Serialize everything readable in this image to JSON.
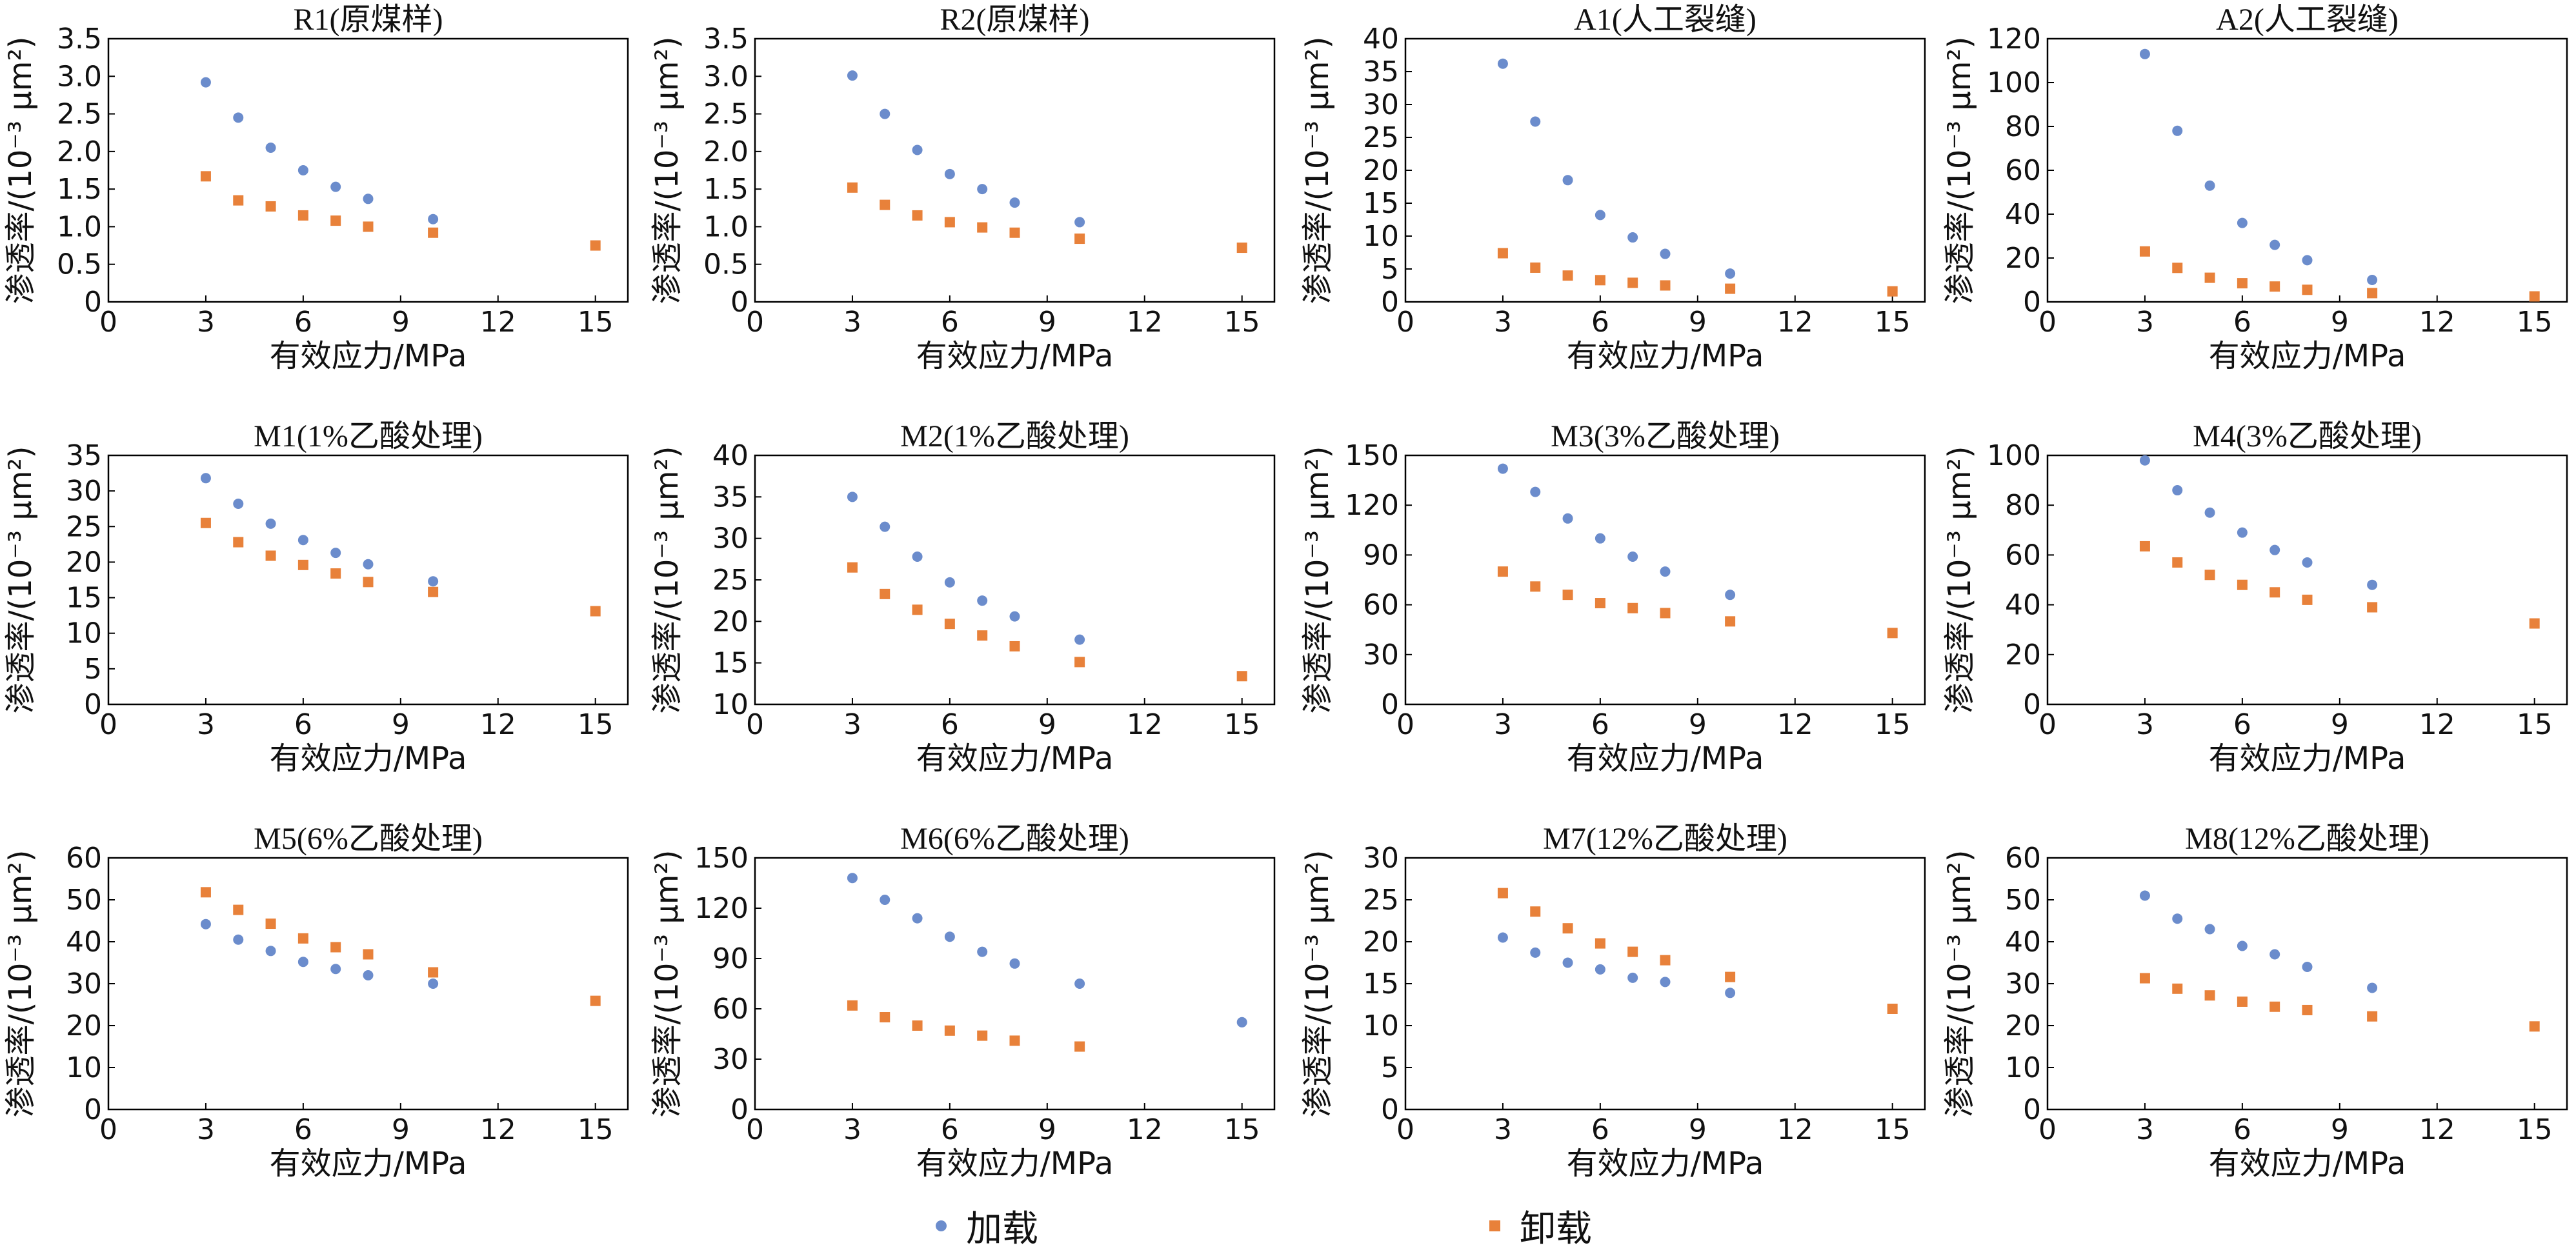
{
  "legend": {
    "load_label": "加载",
    "unload_label": "卸载"
  },
  "colors": {
    "load": "#6b8ccc",
    "unload": "#e8813a",
    "axis": "#000000"
  },
  "chart_data": [
    {
      "type": "scatter",
      "title": "R1(原煤样)",
      "xlabel": "有效应力/MPa",
      "ylabel": "渗透率/(10⁻³ μm²)",
      "xlim": [
        0,
        16
      ],
      "xticks": [
        0,
        3,
        6,
        9,
        12,
        15
      ],
      "ylim": [
        0,
        3.5
      ],
      "yticks": [
        "0",
        "0.5",
        "1.0",
        "1.5",
        "2.0",
        "2.5",
        "3.0",
        "3.5"
      ],
      "series": [
        {
          "name": "加载",
          "x": [
            3,
            4,
            5,
            6,
            7,
            8,
            10
          ],
          "y": [
            2.92,
            2.45,
            2.05,
            1.75,
            1.53,
            1.37,
            1.1
          ]
        },
        {
          "name": "卸载",
          "x": [
            3,
            4,
            5,
            6,
            7,
            8,
            10,
            15
          ],
          "y": [
            1.67,
            1.35,
            1.27,
            1.15,
            1.08,
            1.0,
            0.92,
            0.75
          ]
        }
      ]
    },
    {
      "type": "scatter",
      "title": "R2(原煤样)",
      "xlabel": "有效应力/MPa",
      "ylabel": "渗透率/(10⁻³ μm²)",
      "xlim": [
        0,
        16
      ],
      "xticks": [
        0,
        3,
        6,
        9,
        12,
        15
      ],
      "ylim": [
        0,
        3.5
      ],
      "yticks": [
        "0",
        "0.5",
        "1.0",
        "1.5",
        "2.0",
        "2.5",
        "3.0",
        "3.5"
      ],
      "series": [
        {
          "name": "加载",
          "x": [
            3,
            4,
            5,
            6,
            7,
            8,
            10
          ],
          "y": [
            3.01,
            2.5,
            2.02,
            1.7,
            1.5,
            1.32,
            1.06
          ]
        },
        {
          "name": "卸载",
          "x": [
            3,
            4,
            5,
            6,
            7,
            8,
            10,
            15
          ],
          "y": [
            1.52,
            1.29,
            1.15,
            1.06,
            0.99,
            0.92,
            0.84,
            0.72
          ]
        }
      ]
    },
    {
      "type": "scatter",
      "title": "A1(人工裂缝)",
      "xlabel": "有效应力/MPa",
      "ylabel": "渗透率/(10⁻³ μm²)",
      "xlim": [
        0,
        16
      ],
      "xticks": [
        0,
        3,
        6,
        9,
        12,
        15
      ],
      "ylim": [
        0,
        40
      ],
      "yticks": [
        "0",
        "5",
        "10",
        "15",
        "20",
        "25",
        "30",
        "35",
        "40"
      ],
      "series": [
        {
          "name": "加载",
          "x": [
            3,
            4,
            5,
            6,
            7,
            8,
            10
          ],
          "y": [
            36.2,
            27.4,
            18.5,
            13.2,
            9.8,
            7.3,
            4.3
          ]
        },
        {
          "name": "卸载",
          "x": [
            3,
            4,
            5,
            6,
            7,
            8,
            10,
            15
          ],
          "y": [
            7.4,
            5.2,
            4.0,
            3.3,
            2.9,
            2.5,
            2.0,
            1.6
          ]
        }
      ]
    },
    {
      "type": "scatter",
      "title": "A2(人工裂缝)",
      "xlabel": "有效应力/MPa",
      "ylabel": "渗透率/(10⁻³ μm²)",
      "xlim": [
        0,
        16
      ],
      "xticks": [
        0,
        3,
        6,
        9,
        12,
        15
      ],
      "ylim": [
        0,
        120
      ],
      "yticks": [
        "0",
        "20",
        "40",
        "60",
        "80",
        "100",
        "120"
      ],
      "series": [
        {
          "name": "加载",
          "x": [
            3,
            4,
            5,
            6,
            7,
            8,
            10
          ],
          "y": [
            113,
            78,
            53,
            36,
            26,
            19,
            10
          ]
        },
        {
          "name": "卸载",
          "x": [
            3,
            4,
            5,
            6,
            7,
            8,
            10,
            15
          ],
          "y": [
            23,
            15.5,
            11,
            8.5,
            7,
            5.5,
            4,
            2.5
          ]
        }
      ]
    },
    {
      "type": "scatter",
      "title": "M1(1%乙酸处理)",
      "xlabel": "有效应力/MPa",
      "ylabel": "渗透率/(10⁻³ μm²)",
      "xlim": [
        0,
        16
      ],
      "xticks": [
        0,
        3,
        6,
        9,
        12,
        15
      ],
      "ylim": [
        0,
        35
      ],
      "yticks": [
        "0",
        "5",
        "10",
        "15",
        "20",
        "25",
        "30",
        "35"
      ],
      "series": [
        {
          "name": "加载",
          "x": [
            3,
            4,
            5,
            6,
            7,
            8,
            10
          ],
          "y": [
            31.8,
            28.2,
            25.4,
            23.1,
            21.3,
            19.7,
            17.3
          ]
        },
        {
          "name": "卸载",
          "x": [
            3,
            4,
            5,
            6,
            7,
            8,
            10,
            15
          ],
          "y": [
            25.5,
            22.8,
            20.9,
            19.6,
            18.4,
            17.2,
            15.8,
            13.1
          ]
        }
      ]
    },
    {
      "type": "scatter",
      "title": "M2(1%乙酸处理)",
      "xlabel": "有效应力/MPa",
      "ylabel": "渗透率/(10⁻³ μm²)",
      "xlim": [
        0,
        16
      ],
      "xticks": [
        0,
        3,
        6,
        9,
        12,
        15
      ],
      "ylim": [
        10,
        40
      ],
      "yticks": [
        "10",
        "15",
        "20",
        "25",
        "30",
        "35",
        "40"
      ],
      "series": [
        {
          "name": "加载",
          "x": [
            3,
            4,
            5,
            6,
            7,
            8,
            10
          ],
          "y": [
            35.0,
            31.4,
            27.8,
            24.7,
            22.5,
            20.6,
            17.8
          ]
        },
        {
          "name": "卸载",
          "x": [
            3,
            4,
            5,
            6,
            7,
            8,
            10,
            15
          ],
          "y": [
            26.5,
            23.3,
            21.4,
            19.7,
            18.3,
            17.0,
            15.1,
            13.4
          ]
        }
      ]
    },
    {
      "type": "scatter",
      "title": "M3(3%乙酸处理)",
      "xlabel": "有效应力/MPa",
      "ylabel": "渗透率/(10⁻³ μm²)",
      "xlim": [
        0,
        16
      ],
      "xticks": [
        0,
        3,
        6,
        9,
        12,
        15
      ],
      "ylim": [
        0,
        150
      ],
      "yticks": [
        "0",
        "30",
        "60",
        "90",
        "120",
        "150"
      ],
      "series": [
        {
          "name": "加载",
          "x": [
            3,
            4,
            5,
            6,
            7,
            8,
            10
          ],
          "y": [
            142,
            128,
            112,
            100,
            89,
            80,
            66
          ]
        },
        {
          "name": "卸载",
          "x": [
            3,
            4,
            5,
            6,
            7,
            8,
            10,
            15
          ],
          "y": [
            80,
            71,
            66,
            61,
            58,
            55,
            50,
            43
          ]
        }
      ]
    },
    {
      "type": "scatter",
      "title": "M4(3%乙酸处理)",
      "xlabel": "有效应力/MPa",
      "ylabel": "渗透率/(10⁻³ μm²)",
      "xlim": [
        0,
        16
      ],
      "xticks": [
        0,
        3,
        6,
        9,
        12,
        15
      ],
      "ylim": [
        0,
        100
      ],
      "yticks": [
        "0",
        "20",
        "40",
        "60",
        "80",
        "100"
      ],
      "series": [
        {
          "name": "加载",
          "x": [
            3,
            4,
            5,
            6,
            7,
            8,
            10
          ],
          "y": [
            98,
            86,
            77,
            69,
            62,
            57,
            48
          ]
        },
        {
          "name": "卸载",
          "x": [
            3,
            4,
            5,
            6,
            7,
            8,
            10,
            15
          ],
          "y": [
            63.5,
            57,
            52,
            48,
            45,
            42,
            39,
            32.5
          ]
        }
      ]
    },
    {
      "type": "scatter",
      "title": "M5(6%乙酸处理)",
      "xlabel": "有效应力/MPa",
      "ylabel": "渗透率/(10⁻³ μm²)",
      "xlim": [
        0,
        16
      ],
      "xticks": [
        0,
        3,
        6,
        9,
        12,
        15
      ],
      "ylim": [
        0,
        60
      ],
      "yticks": [
        "0",
        "10",
        "20",
        "30",
        "40",
        "50",
        "60"
      ],
      "series": [
        {
          "name": "加载",
          "x": [
            3,
            4,
            5,
            6,
            7,
            8,
            10
          ],
          "y": [
            44.2,
            40.5,
            37.8,
            35.2,
            33.5,
            32.0,
            30.0
          ]
        },
        {
          "name": "卸载",
          "x": [
            3,
            4,
            5,
            6,
            7,
            8,
            10,
            15
          ],
          "y": [
            51.8,
            47.6,
            44.3,
            40.8,
            38.7,
            37.0,
            32.7,
            25.9
          ]
        }
      ]
    },
    {
      "type": "scatter",
      "title": "M6(6%乙酸处理)",
      "xlabel": "有效应力/MPa",
      "ylabel": "渗透率/(10⁻³ μm²)",
      "xlim": [
        0,
        16
      ],
      "xticks": [
        0,
        3,
        6,
        9,
        12,
        15
      ],
      "ylim": [
        0,
        150
      ],
      "yticks": [
        "0",
        "30",
        "60",
        "90",
        "120",
        "150"
      ],
      "series": [
        {
          "name": "加载",
          "x": [
            3,
            4,
            5,
            6,
            7,
            8,
            10,
            15
          ],
          "y": [
            138,
            125,
            114,
            103,
            94,
            87,
            75,
            52
          ]
        },
        {
          "name": "卸载",
          "x": [
            3,
            4,
            5,
            6,
            7,
            8,
            10
          ],
          "y": [
            62,
            55,
            50,
            47,
            44,
            41,
            37.5
          ]
        }
      ]
    },
    {
      "type": "scatter",
      "title": "M7(12%乙酸处理)",
      "xlabel": "有效应力/MPa",
      "ylabel": "渗透率/(10⁻³ μm²)",
      "xlim": [
        0,
        16
      ],
      "xticks": [
        0,
        3,
        6,
        9,
        12,
        15
      ],
      "ylim": [
        0,
        30
      ],
      "yticks": [
        "0",
        "5",
        "10",
        "15",
        "20",
        "25",
        "30"
      ],
      "series": [
        {
          "name": "加载",
          "x": [
            3,
            4,
            5,
            6,
            7,
            8,
            10
          ],
          "y": [
            20.5,
            18.7,
            17.5,
            16.7,
            15.7,
            15.2,
            13.9
          ]
        },
        {
          "name": "卸载",
          "x": [
            3,
            4,
            5,
            6,
            7,
            8,
            10,
            15
          ],
          "y": [
            25.8,
            23.6,
            21.6,
            19.8,
            18.8,
            17.8,
            15.8,
            12.0
          ]
        }
      ]
    },
    {
      "type": "scatter",
      "title": "M8(12%乙酸处理)",
      "xlabel": "有效应力/MPa",
      "ylabel": "渗透率/(10⁻³ μm²)",
      "xlim": [
        0,
        16
      ],
      "xticks": [
        0,
        3,
        6,
        9,
        12,
        15
      ],
      "ylim": [
        0,
        60
      ],
      "yticks": [
        "0",
        "10",
        "20",
        "30",
        "40",
        "50",
        "60"
      ],
      "series": [
        {
          "name": "加载",
          "x": [
            3,
            4,
            5,
            6,
            7,
            8,
            10
          ],
          "y": [
            51.0,
            45.5,
            43.0,
            39.0,
            37.0,
            34.0,
            29.0
          ]
        },
        {
          "name": "卸载",
          "x": [
            3,
            4,
            5,
            6,
            7,
            8,
            10,
            15
          ],
          "y": [
            31.3,
            28.8,
            27.2,
            25.7,
            24.5,
            23.7,
            22.2,
            19.8
          ]
        }
      ]
    }
  ]
}
